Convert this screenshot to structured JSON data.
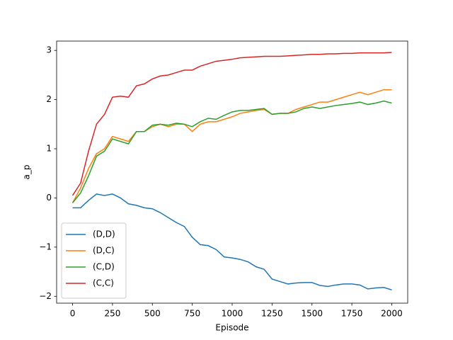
{
  "chart_data": {
    "type": "line",
    "x_label": "Episode",
    "y_label": "a_p",
    "x": [
      0,
      50,
      100,
      150,
      200,
      250,
      300,
      350,
      400,
      450,
      500,
      550,
      600,
      650,
      700,
      750,
      800,
      850,
      900,
      950,
      1000,
      1050,
      1100,
      1150,
      1200,
      1250,
      1300,
      1350,
      1400,
      1450,
      1500,
      1550,
      1600,
      1650,
      1700,
      1750,
      1800,
      1850,
      1900,
      1950,
      2000
    ],
    "series": [
      {
        "name": "(D,D)",
        "color": "#1f77b4",
        "values": [
          -0.2,
          -0.2,
          -0.05,
          0.08,
          0.05,
          0.08,
          0.0,
          -0.12,
          -0.15,
          -0.2,
          -0.22,
          -0.3,
          -0.4,
          -0.5,
          -0.58,
          -0.8,
          -0.95,
          -0.97,
          -1.05,
          -1.2,
          -1.22,
          -1.25,
          -1.3,
          -1.4,
          -1.45,
          -1.65,
          -1.7,
          -1.75,
          -1.73,
          -1.72,
          -1.72,
          -1.78,
          -1.8,
          -1.77,
          -1.75,
          -1.75,
          -1.77,
          -1.85,
          -1.83,
          -1.82,
          -1.87
        ]
      },
      {
        "name": "(D,C)",
        "color": "#ff7f0e",
        "values": [
          -0.1,
          0.2,
          0.6,
          0.9,
          1.0,
          1.25,
          1.2,
          1.15,
          1.35,
          1.35,
          1.45,
          1.5,
          1.45,
          1.5,
          1.5,
          1.35,
          1.5,
          1.55,
          1.55,
          1.6,
          1.65,
          1.72,
          1.75,
          1.78,
          1.8,
          1.7,
          1.72,
          1.72,
          1.8,
          1.85,
          1.9,
          1.95,
          1.95,
          2.0,
          2.05,
          2.1,
          2.15,
          2.1,
          2.15,
          2.2,
          2.2
        ]
      },
      {
        "name": "(C,D)",
        "color": "#2ca02c",
        "values": [
          -0.1,
          0.1,
          0.45,
          0.85,
          0.95,
          1.2,
          1.15,
          1.1,
          1.35,
          1.35,
          1.48,
          1.5,
          1.48,
          1.52,
          1.5,
          1.45,
          1.55,
          1.62,
          1.6,
          1.68,
          1.75,
          1.78,
          1.78,
          1.8,
          1.82,
          1.7,
          1.72,
          1.72,
          1.75,
          1.82,
          1.85,
          1.82,
          1.85,
          1.88,
          1.9,
          1.92,
          1.95,
          1.9,
          1.93,
          1.97,
          1.93
        ]
      },
      {
        "name": "(C,C)",
        "color": "#d62728",
        "values": [
          0.05,
          0.3,
          0.95,
          1.5,
          1.7,
          2.05,
          2.07,
          2.05,
          2.28,
          2.32,
          2.42,
          2.48,
          2.5,
          2.55,
          2.6,
          2.6,
          2.68,
          2.73,
          2.78,
          2.8,
          2.82,
          2.85,
          2.86,
          2.87,
          2.88,
          2.88,
          2.88,
          2.89,
          2.9,
          2.91,
          2.92,
          2.92,
          2.93,
          2.93,
          2.94,
          2.94,
          2.95,
          2.95,
          2.95,
          2.95,
          2.96
        ]
      }
    ],
    "xlim": [
      -100,
      2100
    ],
    "ylim": [
      -2.14,
      3.19
    ],
    "xticks": [
      0,
      250,
      500,
      750,
      1000,
      1250,
      1500,
      1750,
      2000
    ],
    "yticks": [
      {
        "value": -2,
        "label": "−2"
      },
      {
        "value": -1,
        "label": "−1"
      },
      0,
      1,
      2,
      3
    ],
    "grid": false,
    "legend": "lower left"
  }
}
